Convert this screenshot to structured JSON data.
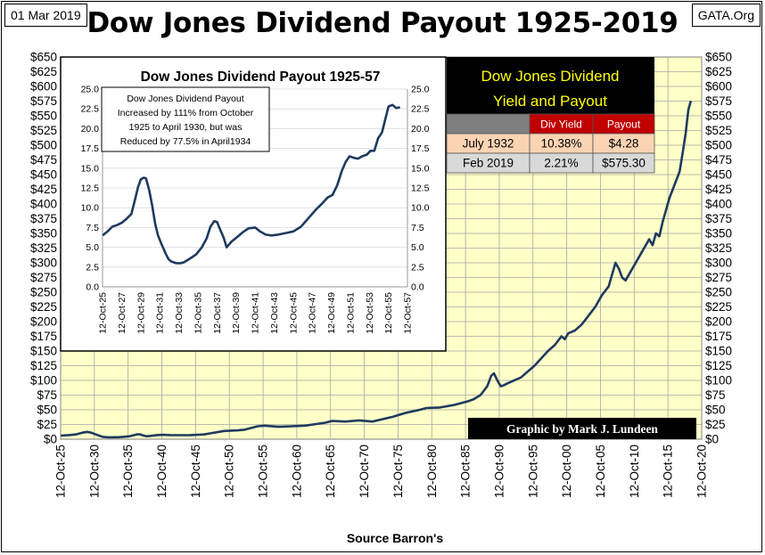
{
  "header": {
    "date": "01 Mar 2019",
    "title": "Dow Jones Dividend Payout 1925-2019",
    "source_tag": "GATA.Org"
  },
  "footer": {
    "xlabel": "Source Barron's",
    "credit": "Graphic by Mark J. Lundeen"
  },
  "colors": {
    "plot_bg": "#ffffc8",
    "line": "#1f3a5f",
    "grid": "#a6a6a6",
    "table_header_bg": "#c00000",
    "row1_bg": "#fbd4b4",
    "row2_bg": "#d9d9d9",
    "table_title_bg": "#000000",
    "table_title_fg": "#ffff00"
  },
  "chart_data": [
    {
      "type": "line",
      "title": "Dow Jones Dividend Payout 1925-2019",
      "xlabel": "Source Barron's",
      "ylabel": "",
      "xlim": [
        1925.78,
        2020.78
      ],
      "ylim": [
        0,
        650
      ],
      "y_ticks": [
        0,
        25,
        50,
        75,
        100,
        125,
        150,
        175,
        200,
        225,
        250,
        275,
        300,
        325,
        350,
        375,
        400,
        425,
        450,
        475,
        500,
        525,
        550,
        575,
        600,
        625,
        650
      ],
      "y_tick_labels": [
        "$0",
        "$25",
        "$50",
        "$75",
        "$100",
        "$125",
        "$150",
        "$175",
        "$200",
        "$225",
        "$250",
        "$275",
        "$300",
        "$325",
        "$350",
        "$375",
        "$400",
        "$425",
        "$450",
        "$475",
        "$500",
        "$525",
        "$550",
        "$575",
        "$600",
        "$625",
        "$650"
      ],
      "x_tick_labels": [
        "12-Oct-25",
        "12-Oct-30",
        "12-Oct-35",
        "12-Oct-40",
        "12-Oct-45",
        "12-Oct-50",
        "12-Oct-55",
        "12-Oct-60",
        "12-Oct-65",
        "12-Oct-70",
        "12-Oct-75",
        "12-Oct-80",
        "12-Oct-85",
        "12-Oct-90",
        "12-Oct-95",
        "12-Oct-00",
        "12-Oct-05",
        "12-Oct-10",
        "12-Oct-15",
        "12-Oct-20"
      ],
      "grid": true,
      "series": [
        {
          "x": [
            1925.8,
            1927,
            1928,
            1929,
            1929.7,
            1930.3,
            1931,
            1932,
            1932.5,
            1933,
            1934.3,
            1935,
            1936,
            1937,
            1937.5,
            1938,
            1938.5,
            1939,
            1940,
            1941,
            1942,
            1943,
            1945,
            1947,
            1948,
            1950,
            1952,
            1953,
            1955,
            1956,
            1958,
            1960,
            1962,
            1965,
            1966,
            1968,
            1970,
            1972,
            1975,
            1977,
            1979,
            1980,
            1982,
            1984,
            1986,
            1987,
            1988,
            1989,
            1989.6,
            1990,
            1990.5,
            1991,
            1991.5,
            1992,
            1994,
            1996,
            1998,
            1999,
            2000,
            2000.5,
            2001,
            2002,
            2003,
            2004,
            2005,
            2006,
            2007,
            2007.5,
            2008,
            2008.5,
            2009,
            2009.5,
            2010,
            2011,
            2012,
            2013,
            2013.5,
            2014,
            2014.5,
            2015,
            2016,
            2017,
            2017.5,
            2018,
            2018.4,
            2018.8,
            2019.17
          ],
          "y": [
            6,
            7,
            8,
            11,
            12.5,
            11,
            8,
            4,
            3.5,
            3.2,
            3.3,
            4,
            5,
            8,
            8.4,
            6.5,
            5,
            5.5,
            7,
            7.5,
            7,
            6.8,
            7,
            8,
            10,
            14,
            15,
            16,
            22,
            23,
            21,
            22,
            23,
            28,
            31,
            30,
            32,
            30,
            38,
            45,
            50,
            53,
            54,
            58,
            64,
            68,
            75,
            90,
            108,
            112,
            100,
            90,
            92,
            95,
            105,
            125,
            150,
            160,
            175,
            170,
            180,
            185,
            195,
            210,
            225,
            245,
            260,
            280,
            300,
            290,
            275,
            270,
            280,
            300,
            320,
            340,
            330,
            350,
            345,
            370,
            410,
            440,
            455,
            490,
            520,
            560,
            575.3
          ]
        }
      ]
    },
    {
      "type": "line",
      "title": "Dow Jones Dividend Payout 1925-57",
      "xlim": [
        1925.78,
        1957.78
      ],
      "ylim": [
        0,
        25
      ],
      "y_ticks": [
        0,
        2.5,
        5,
        7.5,
        10,
        12.5,
        15,
        17.5,
        20,
        22.5,
        25
      ],
      "y_tick_labels": [
        "0.0",
        "2.5",
        "5.0",
        "7.5",
        "10.0",
        "12.5",
        "15.0",
        "17.5",
        "20.0",
        "22.5",
        "25.0"
      ],
      "x_tick_labels": [
        "12-Oct-25",
        "12-Oct-27",
        "12-Oct-29",
        "12-Oct-31",
        "12-Oct-33",
        "12-Oct-35",
        "12-Oct-37",
        "12-Oct-39",
        "12-Oct-41",
        "12-Oct-43",
        "12-Oct-45",
        "12-Oct-47",
        "12-Oct-49",
        "12-Oct-51",
        "12-Oct-53",
        "12-Oct-55",
        "12-Oct-57"
      ],
      "annotation": "Dow Jones Dividend Payout Increased by 111% from October 1925 to April 1930, but was Reduced by 77.5% in April1934",
      "series": [
        {
          "x": [
            1925.8,
            1926.3,
            1926.8,
            1927.3,
            1927.8,
            1928.3,
            1928.8,
            1929.2,
            1929.5,
            1929.8,
            1930.1,
            1930.35,
            1930.7,
            1931,
            1931.3,
            1931.6,
            1932,
            1932.4,
            1932.7,
            1933,
            1933.5,
            1934,
            1934.3,
            1935,
            1935.6,
            1936.2,
            1936.7,
            1937.1,
            1937.5,
            1937.8,
            1938.1,
            1938.5,
            1938.8,
            1939.3,
            1939.9,
            1940.5,
            1941.1,
            1941.8,
            1942.3,
            1942.9,
            1943.5,
            1944.2,
            1945,
            1945.8,
            1946.6,
            1947.4,
            1948.2,
            1948.8,
            1949.4,
            1949.9,
            1950.4,
            1950.9,
            1951.3,
            1951.7,
            1952.2,
            1952.6,
            1953,
            1953.5,
            1953.9,
            1954.3,
            1954.7,
            1955.1,
            1955.5,
            1955.8,
            1956.2,
            1956.6,
            1957
          ],
          "y": [
            6.5,
            7,
            7.6,
            7.8,
            8.1,
            8.6,
            9.2,
            11.1,
            12.6,
            13.6,
            13.8,
            13.7,
            12.1,
            10.2,
            8,
            6.5,
            5.3,
            4.2,
            3.5,
            3.2,
            3,
            3,
            3.1,
            3.6,
            4.1,
            5,
            6.1,
            7.6,
            8.3,
            8.2,
            7.3,
            6.2,
            5,
            5.7,
            6.3,
            6.9,
            7.4,
            7.5,
            7,
            6.6,
            6.5,
            6.6,
            6.8,
            7,
            7.6,
            8.7,
            9.8,
            10.5,
            11.3,
            11.6,
            12.8,
            14.7,
            15.8,
            16.5,
            16.3,
            16.2,
            16.5,
            16.7,
            17.2,
            17.2,
            18.8,
            19.5,
            21.4,
            22.8,
            23,
            22.6,
            22.7
          ]
        }
      ]
    },
    {
      "type": "table",
      "title_lines": [
        "Dow Jones Dividend",
        "Yield and Payout"
      ],
      "columns": [
        "",
        "Div Yield",
        "Payout"
      ],
      "rows": [
        [
          "July 1932",
          "10.38%",
          "$4.28"
        ],
        [
          "Feb 2019",
          "2.21%",
          "$575.30"
        ]
      ]
    }
  ]
}
